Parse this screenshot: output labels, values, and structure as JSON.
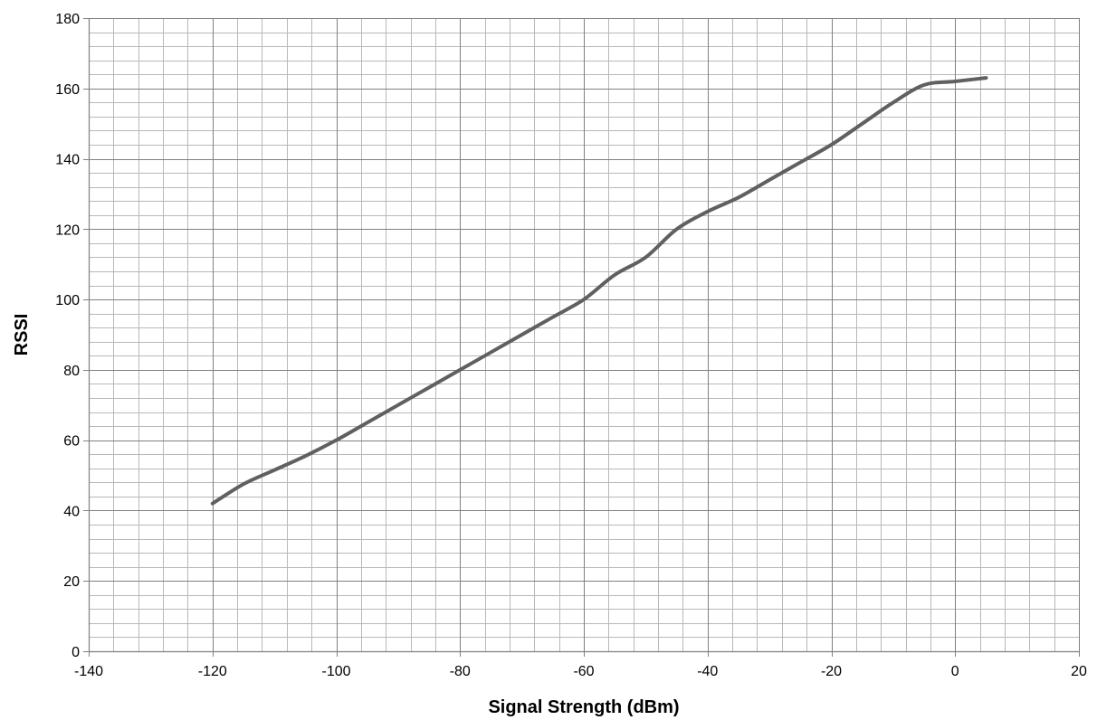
{
  "chart_data": {
    "type": "line",
    "title": "",
    "xlabel": "Signal Strength (dBm)",
    "ylabel": "RSSI",
    "xlim": [
      -140,
      20
    ],
    "ylim": [
      0,
      180
    ],
    "x_major_step": 20,
    "x_minor_step": 4,
    "y_major_step": 20,
    "y_minor_step": 4,
    "grid": true,
    "x_tick_labels": [
      "-140",
      "-120",
      "-100",
      "-80",
      "-60",
      "-40",
      "-20",
      "0",
      "20"
    ],
    "y_tick_labels": [
      "0",
      "20",
      "40",
      "60",
      "80",
      "100",
      "120",
      "140",
      "160",
      "180"
    ],
    "series": [
      {
        "color": "#606060",
        "x": [
          -120,
          -115,
          -110,
          -105,
          -100,
          -95,
          -90,
          -85,
          -80,
          -75,
          -70,
          -65,
          -60,
          -55,
          -50,
          -45,
          -40,
          -35,
          -30,
          -25,
          -20,
          -15,
          -10,
          -5,
          0,
          5
        ],
        "y": [
          42,
          47.5,
          51.5,
          55.5,
          60,
          65,
          70,
          75,
          80,
          85,
          90,
          95,
          100,
          107,
          112,
          120,
          125,
          129,
          134,
          139,
          144,
          150,
          156,
          161,
          162,
          163
        ]
      }
    ]
  }
}
